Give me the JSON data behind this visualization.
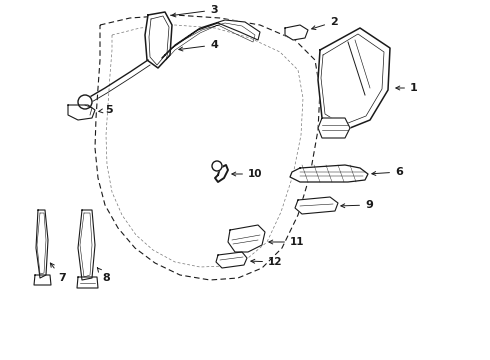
{
  "bg_color": "#ffffff",
  "line_color": "#1a1a1a",
  "figsize": [
    4.9,
    3.6
  ],
  "dpi": 100
}
